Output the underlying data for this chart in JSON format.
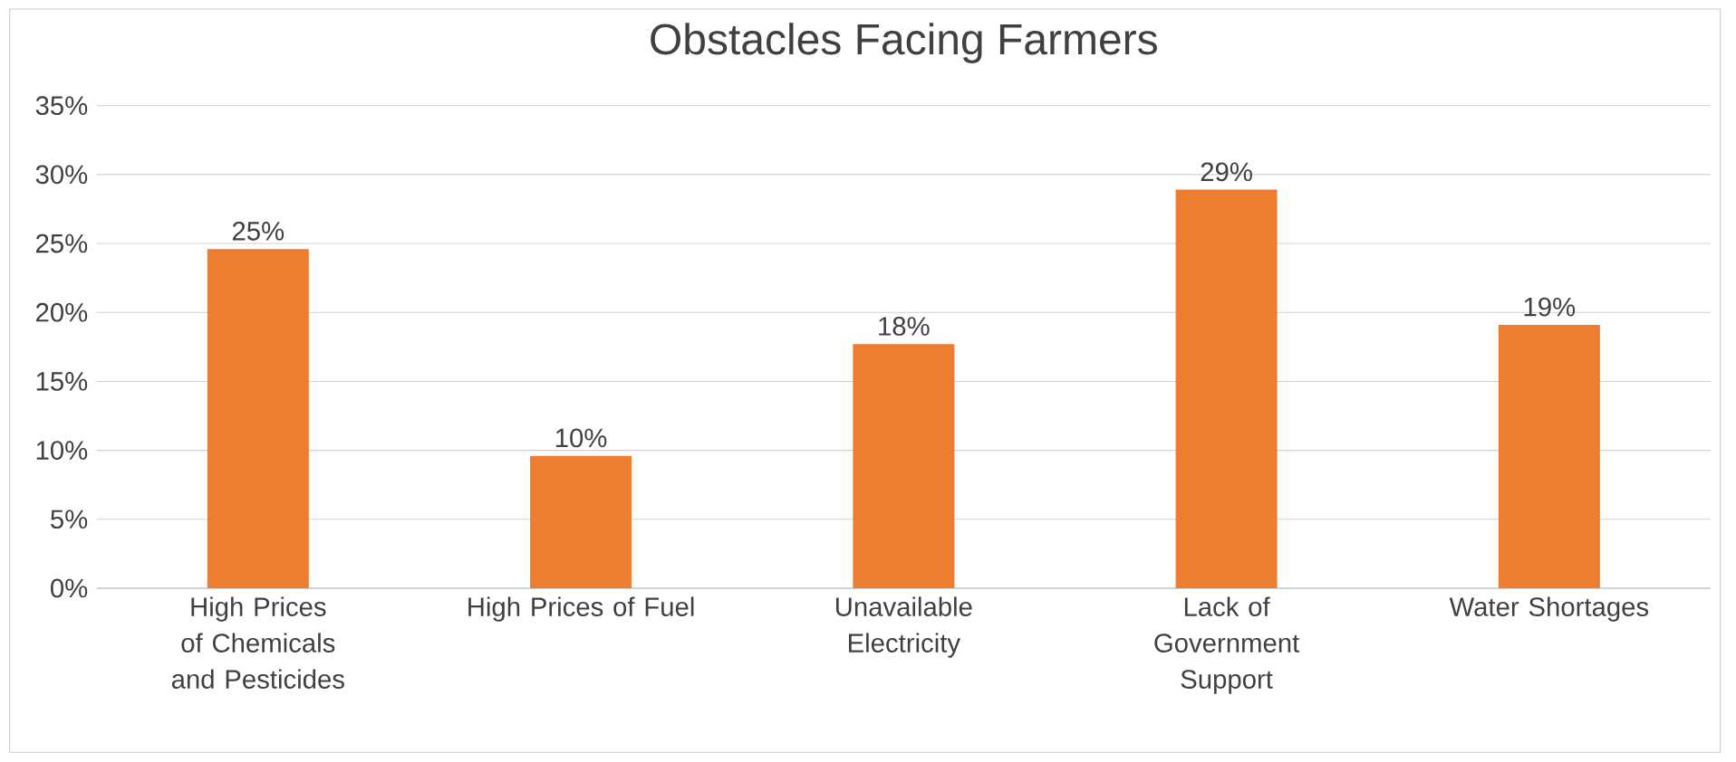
{
  "chart_data": {
    "type": "bar",
    "title": "Obstacles Facing Farmers",
    "categories": [
      "High Prices of Chemicals and Pesticides",
      "High Prices of Fuel",
      "Unavailable Electricity",
      "Lack of Government Support",
      "Water Shortages"
    ],
    "values": [
      24.6,
      9.6,
      17.7,
      28.9,
      19.1
    ],
    "value_labels": [
      "25%",
      "10%",
      "18%",
      "29%",
      "19%"
    ],
    "color": "#ed7d31",
    "ylim": [
      0,
      35
    ],
    "yticks": [
      {
        "value": 0,
        "label": "0%"
      },
      {
        "value": 5,
        "label": "5%"
      },
      {
        "value": 10,
        "label": "10%"
      },
      {
        "value": 15,
        "label": "15%"
      },
      {
        "value": 20,
        "label": "20%"
      },
      {
        "value": 25,
        "label": "25%"
      },
      {
        "value": 30,
        "label": "30%"
      },
      {
        "value": 35,
        "label": "35%"
      }
    ],
    "grid": "y"
  }
}
